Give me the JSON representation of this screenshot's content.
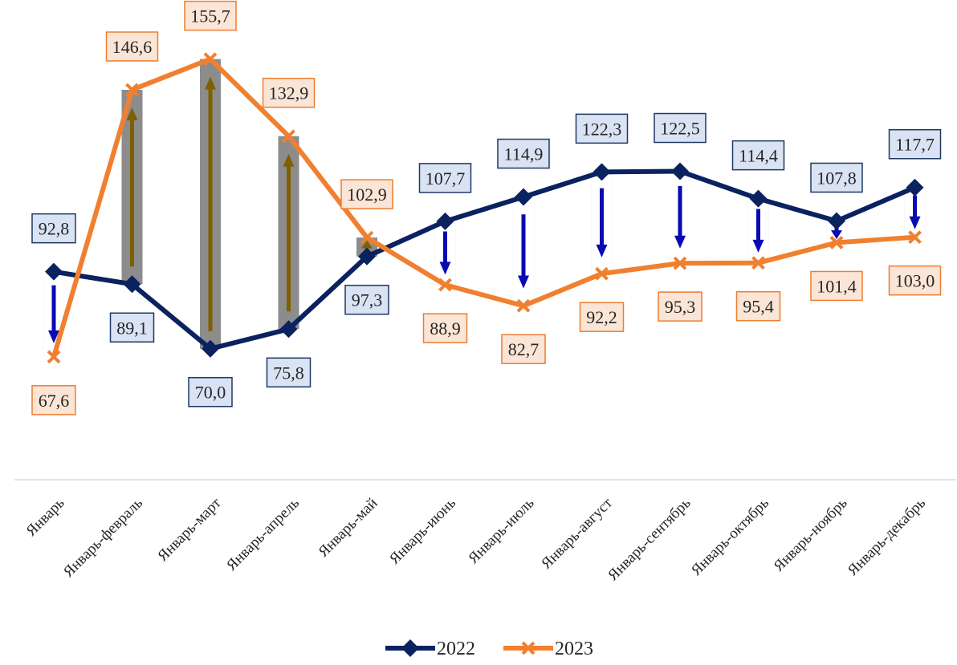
{
  "chart_data": {
    "type": "line",
    "title": "",
    "xlabel": "",
    "ylabel": "",
    "ylim": [
      0,
      170
    ],
    "grid": false,
    "legend_position": "bottom",
    "categories": [
      "Январь",
      "Январь-февраль",
      "Январь-март",
      "Январь-апрель",
      "Январь-май",
      "Январь-июнь",
      "Январь-июль",
      "Январь-август",
      "Январь-сентябрь",
      "Январь-октябрь",
      "Январь-ноябрь",
      "Январь-декабрь"
    ],
    "series": [
      {
        "name": "2022",
        "color": "#0b2260",
        "label_fill": "#dae3f3",
        "label_border": "#1f3864",
        "marker": "diamond",
        "values": [
          92.8,
          89.1,
          70.0,
          75.8,
          97.3,
          107.7,
          114.9,
          122.3,
          122.5,
          114.4,
          107.8,
          117.7
        ],
        "labels": [
          "92,8",
          "89,1",
          "70,0",
          "75,8",
          "97,3",
          "107,7",
          "114,9",
          "122,3",
          "122,5",
          "114,4",
          "107,8",
          "117,7"
        ]
      },
      {
        "name": "2023",
        "color": "#f08030",
        "label_fill": "#fbe5d6",
        "label_border": "#ed7d31",
        "marker": "x",
        "values": [
          67.6,
          146.6,
          155.7,
          132.9,
          102.9,
          88.9,
          82.7,
          92.2,
          95.3,
          95.4,
          101.4,
          103.0
        ],
        "labels": [
          "67,6",
          "146,6",
          "155,7",
          "132,9",
          "102,9",
          "88,9",
          "82,7",
          "92,2",
          "95,3",
          "95,4",
          "101,4",
          "103,0"
        ]
      }
    ],
    "bar_color": "#8c8c8c",
    "arrow_up_color": "#7f6000",
    "arrow_down_color": "#0a0ab4"
  }
}
